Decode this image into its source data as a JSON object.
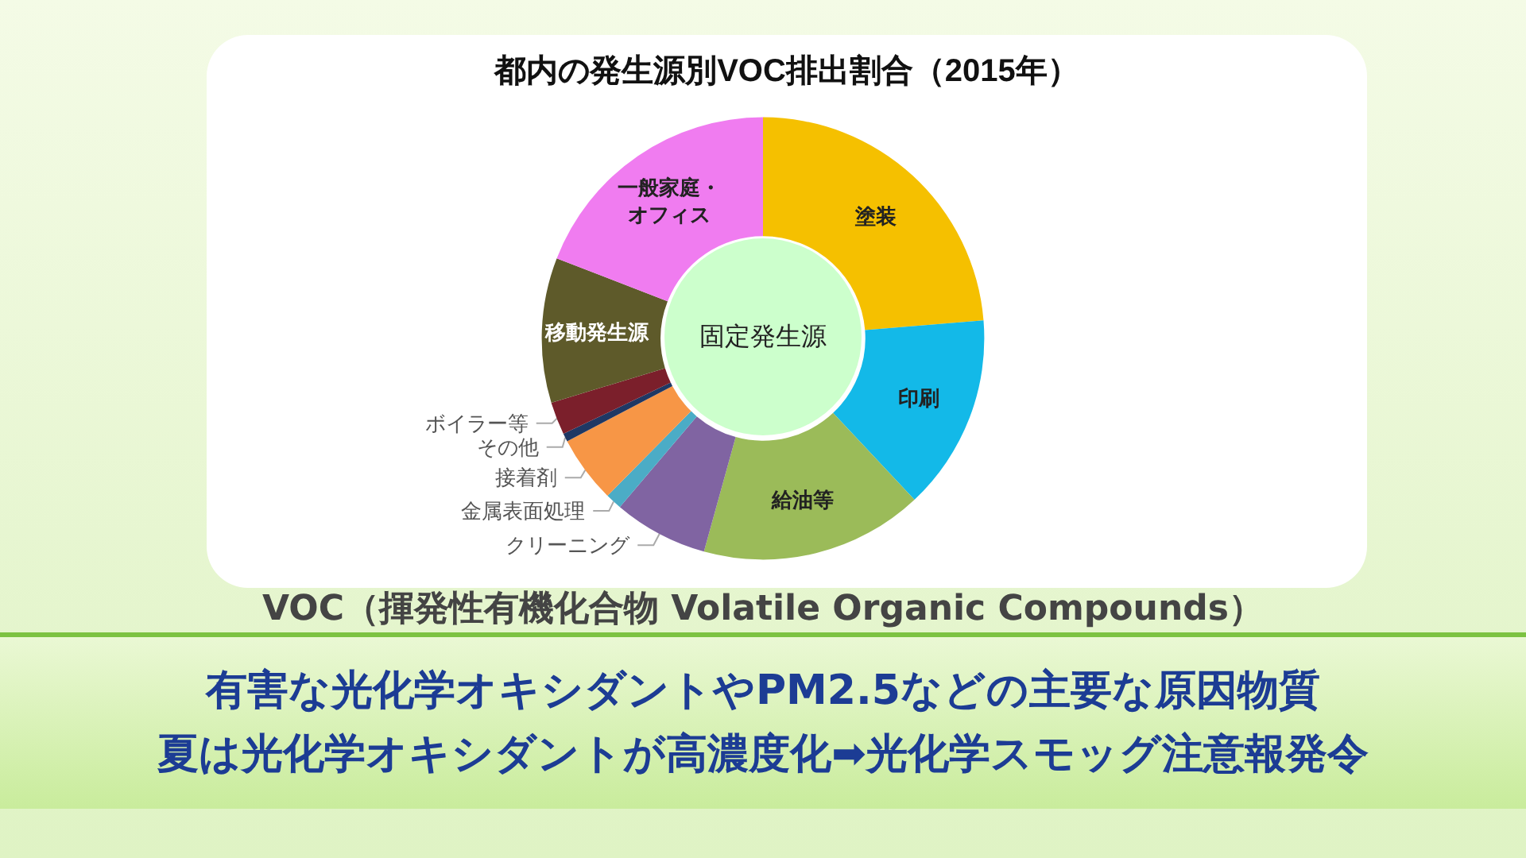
{
  "chart_data": {
    "type": "donut",
    "title": "都内の発生源別VOC排出割合（2015年）",
    "categories": [
      "塗装",
      "印刷",
      "給油等",
      "クリーニング",
      "金属表面処理",
      "接着剤",
      "その他",
      "ボイラー等",
      "移動発生源",
      "一般家庭・オフィス"
    ],
    "values": [
      23.7,
      14.3,
      16.3,
      6.9,
      1.2,
      4.9,
      0.6,
      2.4,
      10.6,
      19.1
    ],
    "colors": [
      "#f5c000",
      "#13b9e8",
      "#9bbb59",
      "#8064a2",
      "#4bacc6",
      "#f79646",
      "#1f3864",
      "#7b1f2b",
      "#5e5a2a",
      "#f07cf0"
    ],
    "annotations": [
      "固定発生源",
      "VOC（揮発性有機化合物 Volatile Organic Compounds）",
      "有害な光化学オキシダントやPM2.5などの主要な原因物質",
      "夏は光化学オキシダントが高濃度化➡光化学スモッグ注意報発令"
    ]
  }
}
